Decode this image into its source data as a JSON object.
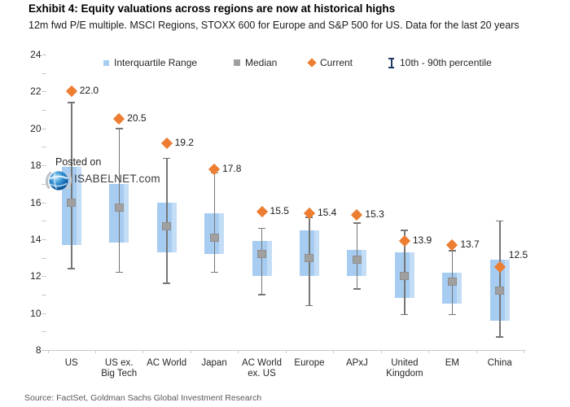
{
  "header": {
    "title": "Exhibit 4: Equity valuations across regions are now at historical highs",
    "subtitle": "12m fwd P/E multiple. MSCI Regions, STOXX 600 for Europe and S&P 500 for US. Data for the last 20 years"
  },
  "legend": {
    "iqr_label": "Interquartile Range",
    "median_label": "Median",
    "current_label": "Current",
    "percentile_label": "10th - 90th percentile"
  },
  "watermark": {
    "line1": "Posted on",
    "line2": "ISABELNET.com",
    "logo": "isabelnet-globe-logo"
  },
  "footer": {
    "source": "Source: FactSet, Goldman Sachs Global Investment Research"
  },
  "colors": {
    "box": "#A6CCF1",
    "box_highlight": "#C4DDF7",
    "median": "#A0A0A0",
    "median_border": "#8F8F8F",
    "whisker": "#767676",
    "current": "#ED7D31",
    "legend_whisker": "#1F3864",
    "axis": "#C9C9C9",
    "tick": "#C9C9C9",
    "text": "#262626"
  },
  "chart_data": {
    "type": "boxplot",
    "title": "Exhibit 4: Equity valuations across regions are now at historical highs",
    "subtitle": "12m fwd P/E multiple. MSCI Regions, STOXX 600 for Europe and S&P 500 for US. Data for the last 20 years",
    "xlabel": "",
    "ylabel": "12m fwd P/E",
    "ylim": [
      8,
      24
    ],
    "ytick_label_step": 2,
    "ytick_minor_step": 1,
    "grid": false,
    "legend_position": "top",
    "legend_entries": [
      "Interquartile Range",
      "Median",
      "Current",
      "10th - 90th percentile"
    ],
    "categories": [
      "US",
      "US ex.\nBig Tech",
      "AC World",
      "Japan",
      "AC World\nex. US",
      "Europe",
      "APxJ",
      "United\nKingdom",
      "EM",
      "China"
    ],
    "series": [
      {
        "region": "US",
        "current": 22.0,
        "current_label": "22.0",
        "p90": 21.4,
        "q3": 17.9,
        "median": 16.0,
        "q1": 13.7,
        "p10": 12.4
      },
      {
        "region": "US ex. Big Tech",
        "current": 20.5,
        "current_label": "20.5",
        "p90": 20.0,
        "q3": 17.0,
        "median": 15.7,
        "q1": 13.8,
        "p10": 12.2
      },
      {
        "region": "AC World",
        "current": 19.2,
        "current_label": "19.2",
        "p90": 18.4,
        "q3": 16.0,
        "median": 14.7,
        "q1": 13.3,
        "p10": 11.6
      },
      {
        "region": "Japan",
        "current": 17.8,
        "current_label": "17.8",
        "p90": 17.6,
        "q3": 15.4,
        "median": 14.1,
        "q1": 13.2,
        "p10": 12.2
      },
      {
        "region": "AC World ex. US",
        "current": 15.5,
        "current_label": "15.5",
        "p90": 14.6,
        "q3": 13.9,
        "median": 13.2,
        "q1": 12.0,
        "p10": 11.0
      },
      {
        "region": "Europe",
        "current": 15.4,
        "current_label": "15.4",
        "p90": 15.2,
        "q3": 14.5,
        "median": 13.0,
        "q1": 12.0,
        "p10": 10.4
      },
      {
        "region": "APxJ",
        "current": 15.3,
        "current_label": "15.3",
        "p90": 14.9,
        "q3": 13.4,
        "median": 12.9,
        "q1": 12.0,
        "p10": 11.3
      },
      {
        "region": "United Kingdom",
        "current": 13.9,
        "current_label": "13.9",
        "p90": 14.5,
        "q3": 13.3,
        "median": 12.0,
        "q1": 10.8,
        "p10": 9.9
      },
      {
        "region": "EM",
        "current": 13.7,
        "current_label": "13.7",
        "p90": 13.4,
        "q3": 12.2,
        "median": 11.7,
        "q1": 10.5,
        "p10": 9.9
      },
      {
        "region": "China",
        "current": 12.5,
        "current_label": "12.5",
        "p90": 15.0,
        "q3": 12.9,
        "median": 11.2,
        "q1": 9.6,
        "p10": 8.7,
        "label_above": true
      }
    ]
  }
}
